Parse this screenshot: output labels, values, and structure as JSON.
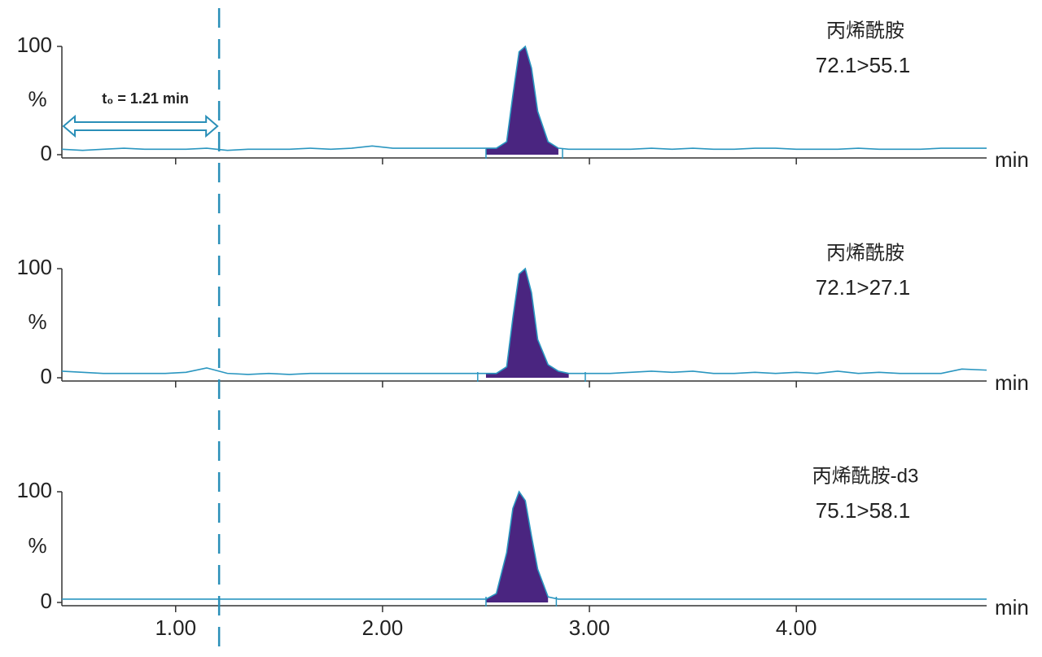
{
  "chart_data": [
    {
      "type": "line",
      "title": "丙烯酰胺",
      "subtitle": "72.1>55.1",
      "x_label": "min",
      "y_label": "%",
      "xlim": [
        0.45,
        4.92
      ],
      "ylim": [
        0,
        100
      ],
      "yticks": [
        0,
        100
      ],
      "annotation": "t₀ = 1.21 min",
      "vline": 1.21,
      "integration": [
        2.5,
        2.87
      ],
      "fill": "#4a2580",
      "series": [
        {
          "color": "#2a96c0",
          "x": [
            0.45,
            0.55,
            0.65,
            0.75,
            0.85,
            0.95,
            1.05,
            1.15,
            1.25,
            1.35,
            1.45,
            1.55,
            1.65,
            1.75,
            1.85,
            1.95,
            2.05,
            2.15,
            2.25,
            2.35,
            2.45,
            2.5,
            2.55,
            2.6,
            2.63,
            2.66,
            2.69,
            2.72,
            2.75,
            2.8,
            2.85,
            2.9,
            3.0,
            3.1,
            3.2,
            3.3,
            3.4,
            3.5,
            3.6,
            3.7,
            3.8,
            3.9,
            4.0,
            4.1,
            4.2,
            4.3,
            4.4,
            4.5,
            4.6,
            4.7,
            4.8,
            4.92
          ],
          "values": [
            5,
            4,
            5,
            6,
            5,
            5,
            5,
            6,
            4,
            5,
            5,
            5,
            6,
            5,
            6,
            8,
            6,
            6,
            6,
            6,
            6,
            6,
            6,
            12,
            55,
            95,
            100,
            80,
            40,
            12,
            6,
            5,
            5,
            5,
            5,
            6,
            5,
            6,
            5,
            5,
            6,
            6,
            5,
            5,
            5,
            6,
            5,
            5,
            5,
            6,
            6,
            6
          ]
        }
      ]
    },
    {
      "type": "line",
      "title": "丙烯酰胺",
      "subtitle": "72.1>27.1",
      "x_label": "min",
      "y_label": "%",
      "xlim": [
        0.45,
        4.92
      ],
      "ylim": [
        0,
        100
      ],
      "yticks": [
        0,
        100
      ],
      "integration": [
        2.46,
        2.98
      ],
      "fill": "#4a2580",
      "series": [
        {
          "color": "#2a96c0",
          "x": [
            0.45,
            0.55,
            0.65,
            0.75,
            0.85,
            0.95,
            1.05,
            1.15,
            1.25,
            1.35,
            1.45,
            1.55,
            1.65,
            1.75,
            1.85,
            1.95,
            2.05,
            2.15,
            2.25,
            2.35,
            2.45,
            2.5,
            2.55,
            2.6,
            2.63,
            2.66,
            2.69,
            2.72,
            2.75,
            2.8,
            2.85,
            2.9,
            3.0,
            3.1,
            3.2,
            3.3,
            3.4,
            3.5,
            3.6,
            3.7,
            3.8,
            3.9,
            4.0,
            4.1,
            4.2,
            4.3,
            4.4,
            4.5,
            4.6,
            4.7,
            4.8,
            4.92
          ],
          "values": [
            6,
            5,
            4,
            4,
            4,
            4,
            5,
            9,
            4,
            3,
            4,
            3,
            4,
            4,
            4,
            4,
            4,
            4,
            4,
            4,
            4,
            4,
            4,
            10,
            55,
            95,
            100,
            78,
            35,
            12,
            6,
            4,
            4,
            4,
            5,
            6,
            5,
            6,
            4,
            4,
            5,
            4,
            5,
            4,
            6,
            4,
            5,
            4,
            4,
            4,
            8,
            7
          ]
        }
      ]
    },
    {
      "type": "line",
      "title": "丙烯酰胺-d3",
      "subtitle": "75.1>58.1",
      "x_label": "min",
      "y_label": "%",
      "xlim": [
        0.45,
        4.92
      ],
      "ylim": [
        0,
        100
      ],
      "yticks": [
        0,
        100
      ],
      "xticks": [
        {
          "value": 1,
          "label": "1.00"
        },
        {
          "value": 2,
          "label": "2.00"
        },
        {
          "value": 3,
          "label": "3.00"
        },
        {
          "value": 4,
          "label": "4.00"
        }
      ],
      "integration": [
        2.5,
        2.84
      ],
      "fill": "#4a2580",
      "series": [
        {
          "color": "#2a96c0",
          "x": [
            0.45,
            0.55,
            0.65,
            0.75,
            0.85,
            0.95,
            1.05,
            1.15,
            1.25,
            1.35,
            1.45,
            1.55,
            1.65,
            1.75,
            1.85,
            1.95,
            2.05,
            2.15,
            2.25,
            2.35,
            2.45,
            2.5,
            2.55,
            2.6,
            2.63,
            2.66,
            2.69,
            2.72,
            2.75,
            2.8,
            2.85,
            2.9,
            3.0,
            3.1,
            3.2,
            3.3,
            3.4,
            3.5,
            3.6,
            3.7,
            3.8,
            3.9,
            4.0,
            4.1,
            4.2,
            4.3,
            4.4,
            4.5,
            4.6,
            4.7,
            4.8,
            4.92
          ],
          "values": [
            3,
            3,
            3,
            3,
            3,
            3,
            3,
            3,
            3,
            3,
            3,
            3,
            3,
            3,
            3,
            3,
            3,
            3,
            3,
            3,
            3,
            3,
            8,
            45,
            85,
            100,
            92,
            60,
            30,
            5,
            3,
            3,
            3,
            3,
            3,
            3,
            3,
            3,
            3,
            3,
            3,
            3,
            3,
            3,
            3,
            3,
            3,
            3,
            3,
            3,
            3,
            3
          ]
        }
      ]
    }
  ]
}
